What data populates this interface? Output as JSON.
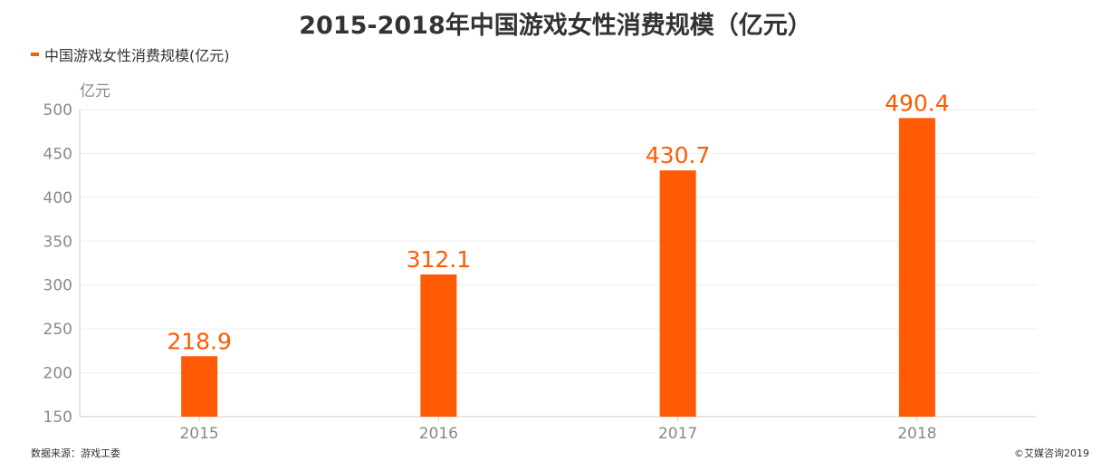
{
  "chart_data": {
    "type": "bar",
    "title": "2015-2018年中国游戏女性消费规模（亿元）",
    "ylabel": "亿元",
    "xlabel": "",
    "categories": [
      "2015",
      "2016",
      "2017",
      "2018"
    ],
    "series": [
      {
        "name": "中国游戏女性消费规模(亿元)",
        "values": [
          218.9,
          312.1,
          430.7,
          490.4
        ]
      }
    ],
    "data_labels": [
      "218.9",
      "312.1",
      "430.7",
      "490.4"
    ],
    "ylim": [
      150,
      500
    ],
    "yticks": [
      150,
      200,
      250,
      300,
      350,
      400,
      450,
      500
    ],
    "grid": true,
    "legend_position": "top-left",
    "colors": {
      "bar": "#ff5a05",
      "label": "#ff5a05",
      "grid": "#eeeeee",
      "axis": "#cccccc",
      "tick_text": "#888888"
    }
  },
  "footer": {
    "source": "数据来源：游戏工委",
    "copyright": "©艾媒咨询2019"
  }
}
